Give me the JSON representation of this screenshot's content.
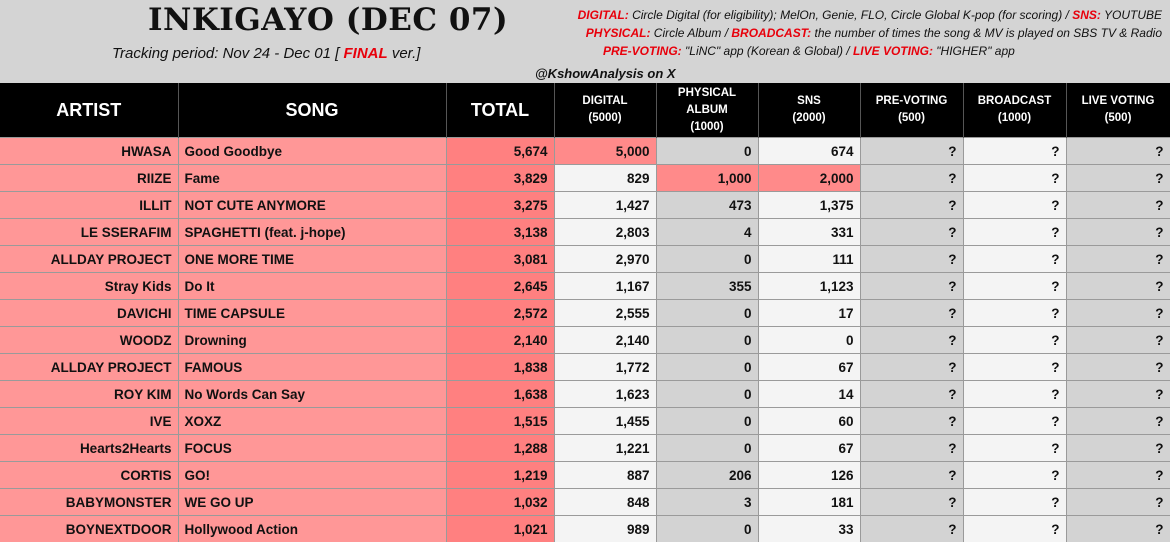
{
  "header": {
    "title": "INKIGAYO (DEC 07)",
    "period_prefix": "Tracking period: Nov 24 - Dec 01 [ ",
    "period_final": "FINAL",
    "period_suffix": " ver.]",
    "credit": "@KshowAnalysis on X",
    "legend": {
      "digital_key": "DIGITAL:",
      "digital_text": " Circle Digital (for eligibility); MelOn, Genie, FLO, Circle Global K-pop (for scoring) / ",
      "sns_key": "SNS:",
      "sns_text": " YOUTUBE",
      "physical_key": "PHYSICAL:",
      "physical_text": " Circle Album / ",
      "broadcast_key": "BROADCAST:",
      "broadcast_text": " the number of times the song & MV is played on SBS TV & Radio",
      "prevoting_key": "PRE-VOTING:",
      "prevoting_text": " \"LiNC\" app (Korean & Global) / ",
      "livevoting_key": "LIVE VOTING:",
      "livevoting_text": " \"HIGHER\" app"
    }
  },
  "colors": {
    "header_bg": "#d4d4d4",
    "table_header_bg": "#000000",
    "pink": "#ff9797",
    "total_pink": "#ff8080",
    "max_highlight": "#ff8a8a",
    "title_red": "#e8000b"
  },
  "chart_data": {
    "type": "table",
    "columns": [
      {
        "line1": "ARTIST",
        "line2": ""
      },
      {
        "line1": "SONG",
        "line2": ""
      },
      {
        "line1": "TOTAL",
        "line2": ""
      },
      {
        "line1": "DIGITAL",
        "line2": "(5000)"
      },
      {
        "line1": "PHYSICAL ALBUM",
        "line2": "(1000)"
      },
      {
        "line1": "SNS",
        "line2": "(2000)"
      },
      {
        "line1": "PRE-VOTING",
        "line2": "(500)"
      },
      {
        "line1": "BROADCAST",
        "line2": "(1000)"
      },
      {
        "line1": "LIVE VOTING",
        "line2": "(500)"
      }
    ],
    "rows": [
      {
        "artist": "HWASA",
        "song": "Good Goodbye",
        "total": "5,674",
        "digital": "5,000",
        "physical": "0",
        "sns": "674",
        "prevoting": "?",
        "broadcast": "?",
        "livevoting": "?"
      },
      {
        "artist": "RIIZE",
        "song": "Fame",
        "total": "3,829",
        "digital": "829",
        "physical": "1,000",
        "sns": "2,000",
        "prevoting": "?",
        "broadcast": "?",
        "livevoting": "?"
      },
      {
        "artist": "ILLIT",
        "song": "NOT CUTE ANYMORE",
        "total": "3,275",
        "digital": "1,427",
        "physical": "473",
        "sns": "1,375",
        "prevoting": "?",
        "broadcast": "?",
        "livevoting": "?"
      },
      {
        "artist": "LE SSERAFIM",
        "song": "SPAGHETTI (feat. j-hope)",
        "total": "3,138",
        "digital": "2,803",
        "physical": "4",
        "sns": "331",
        "prevoting": "?",
        "broadcast": "?",
        "livevoting": "?"
      },
      {
        "artist": "ALLDAY PROJECT",
        "song": "ONE MORE TIME",
        "total": "3,081",
        "digital": "2,970",
        "physical": "0",
        "sns": "111",
        "prevoting": "?",
        "broadcast": "?",
        "livevoting": "?"
      },
      {
        "artist": "Stray Kids",
        "song": "Do It",
        "total": "2,645",
        "digital": "1,167",
        "physical": "355",
        "sns": "1,123",
        "prevoting": "?",
        "broadcast": "?",
        "livevoting": "?"
      },
      {
        "artist": "DAVICHI",
        "song": "TIME CAPSULE",
        "total": "2,572",
        "digital": "2,555",
        "physical": "0",
        "sns": "17",
        "prevoting": "?",
        "broadcast": "?",
        "livevoting": "?"
      },
      {
        "artist": "WOODZ",
        "song": "Drowning",
        "total": "2,140",
        "digital": "2,140",
        "physical": "0",
        "sns": "0",
        "prevoting": "?",
        "broadcast": "?",
        "livevoting": "?"
      },
      {
        "artist": "ALLDAY PROJECT",
        "song": "FAMOUS",
        "total": "1,838",
        "digital": "1,772",
        "physical": "0",
        "sns": "67",
        "prevoting": "?",
        "broadcast": "?",
        "livevoting": "?"
      },
      {
        "artist": "ROY KIM",
        "song": "No Words Can Say",
        "total": "1,638",
        "digital": "1,623",
        "physical": "0",
        "sns": "14",
        "prevoting": "?",
        "broadcast": "?",
        "livevoting": "?"
      },
      {
        "artist": "IVE",
        "song": "XOXZ",
        "total": "1,515",
        "digital": "1,455",
        "physical": "0",
        "sns": "60",
        "prevoting": "?",
        "broadcast": "?",
        "livevoting": "?"
      },
      {
        "artist": "Hearts2Hearts",
        "song": "FOCUS",
        "total": "1,288",
        "digital": "1,221",
        "physical": "0",
        "sns": "67",
        "prevoting": "?",
        "broadcast": "?",
        "livevoting": "?"
      },
      {
        "artist": "CORTIS",
        "song": "GO!",
        "total": "1,219",
        "digital": "887",
        "physical": "206",
        "sns": "126",
        "prevoting": "?",
        "broadcast": "?",
        "livevoting": "?"
      },
      {
        "artist": "BABYMONSTER",
        "song": "WE GO UP",
        "total": "1,032",
        "digital": "848",
        "physical": "3",
        "sns": "181",
        "prevoting": "?",
        "broadcast": "?",
        "livevoting": "?"
      },
      {
        "artist": "BOYNEXTDOOR",
        "song": "Hollywood Action",
        "total": "1,021",
        "digital": "989",
        "physical": "0",
        "sns": "33",
        "prevoting": "?",
        "broadcast": "?",
        "livevoting": "?"
      }
    ],
    "max_highlights": [
      {
        "row": 0,
        "col": "digital"
      },
      {
        "row": 1,
        "col": "physical"
      },
      {
        "row": 1,
        "col": "sns"
      }
    ]
  }
}
